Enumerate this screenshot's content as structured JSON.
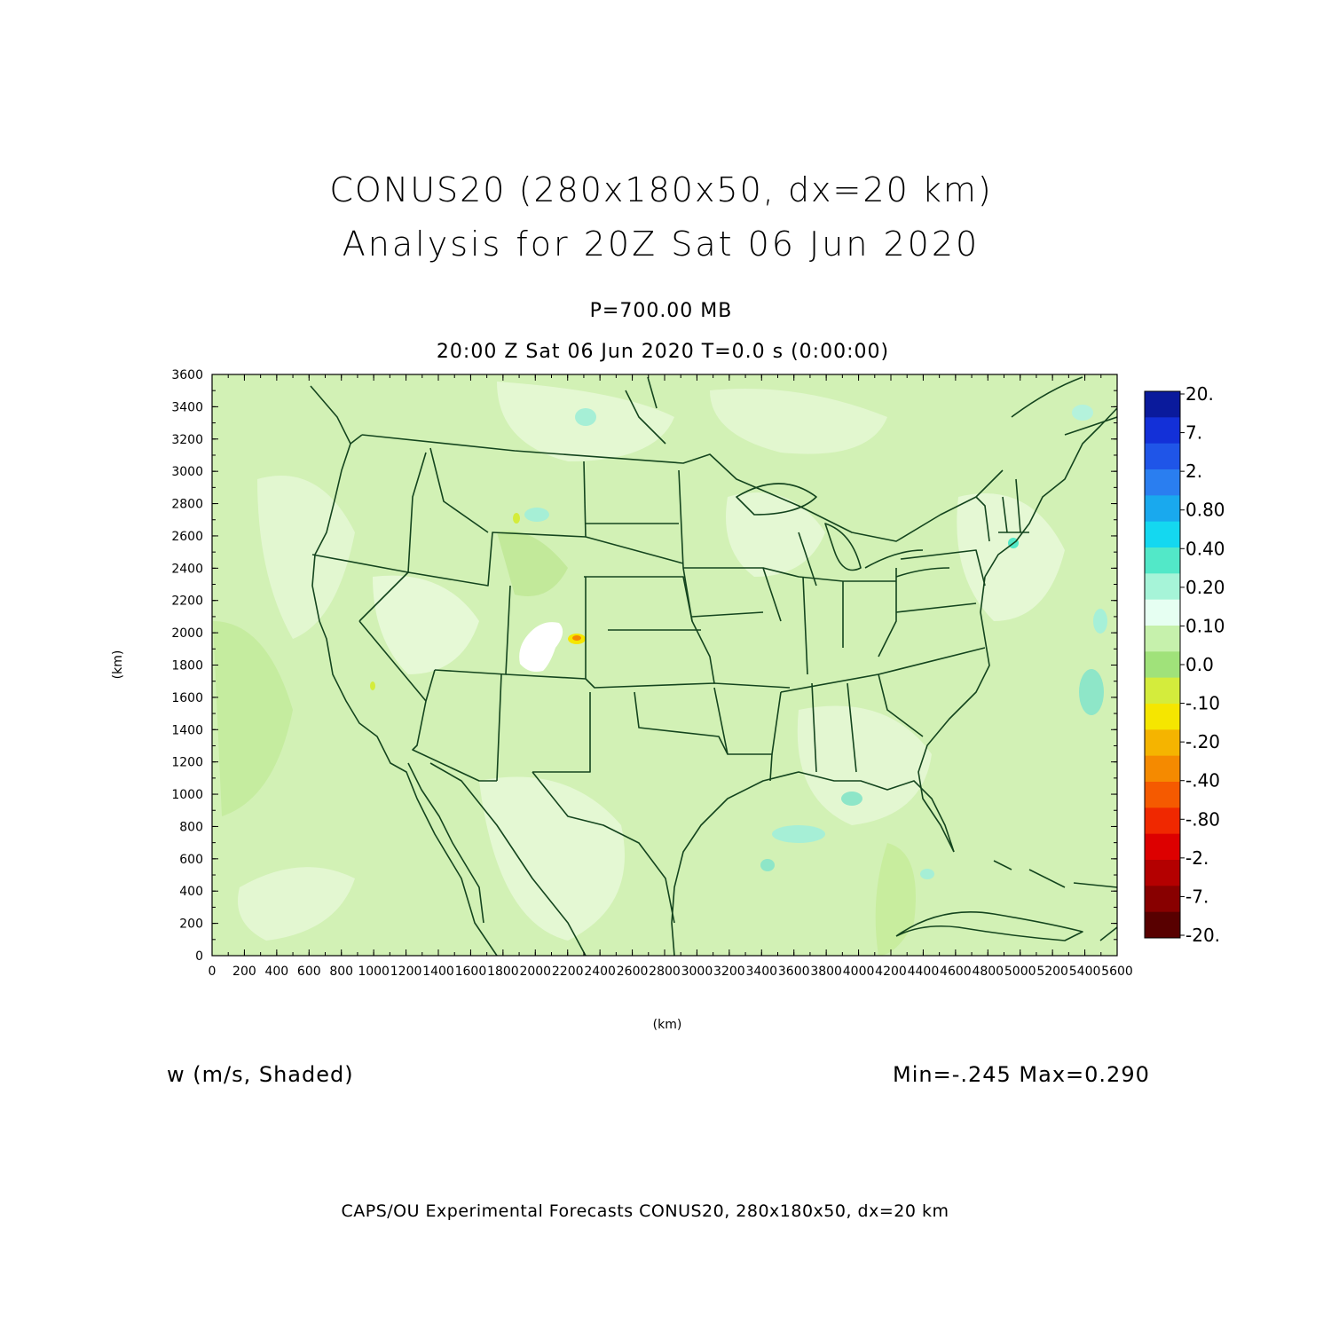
{
  "title": {
    "line1": "CONUS20 (280x180x50, dx=20 km)",
    "line2": "Analysis for 20Z Sat 06 Jun 2020"
  },
  "level": "P=700.00 MB",
  "time_line": "20:00 Z Sat 06 Jun 2020    T=0.0 s (0:00:00)",
  "axes": {
    "x_label": "(km)",
    "y_label": "(km)",
    "x_range": [
      0,
      5600
    ],
    "y_range": [
      0,
      3600
    ],
    "tick_step": 200
  },
  "variable_label": "w (m/s, Shaded)",
  "minmax": "Min=-.245 Max=0.290",
  "footer": "CAPS/OU Experimental Forecasts  CONUS20, 280x180x50, dx=20 km",
  "colorbar": {
    "labels": [
      "20.",
      "7.",
      "2.",
      "0.80",
      "0.40",
      "0.20",
      "0.10",
      "0.0",
      "-.10",
      "-.20",
      "-.40",
      "-.80",
      "-2.",
      "-7.",
      "-20."
    ],
    "colors": [
      "#0a1a9c",
      "#1330d8",
      "#1f55e8",
      "#2a7ef0",
      "#19a9ee",
      "#14d8f0",
      "#52e8c8",
      "#a6f4d8",
      "#e6fff2",
      "#c6f1ac",
      "#a0e27a",
      "#d4ec3c",
      "#f5e600",
      "#f5b400",
      "#f58a00",
      "#f55a00",
      "#f02800",
      "#dd0000",
      "#b40000",
      "#880000",
      "#580000"
    ]
  },
  "colors": {
    "background_shade": "#d2f1b5",
    "boundary": "#14451e"
  }
}
